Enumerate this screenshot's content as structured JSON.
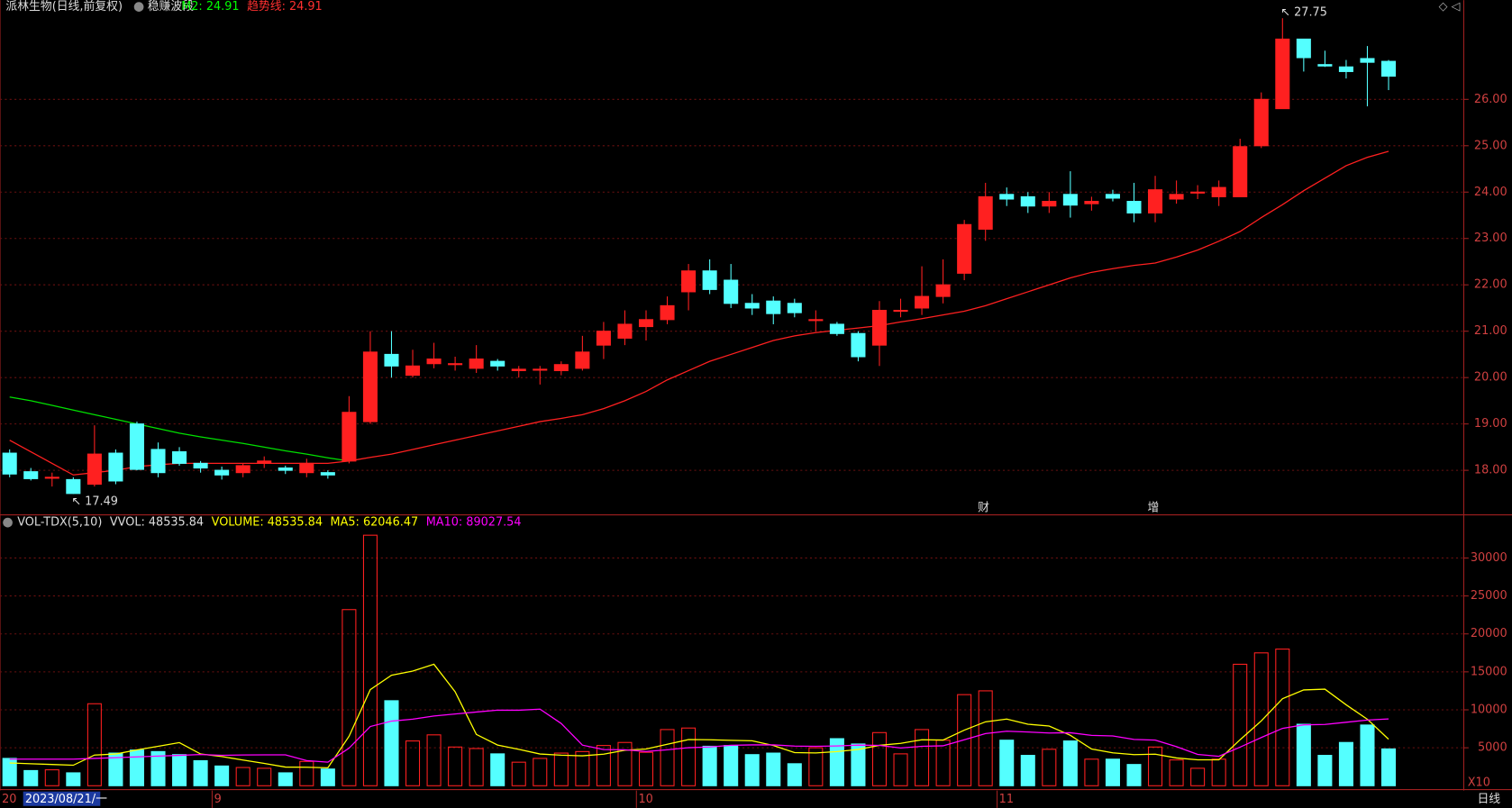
{
  "chart_data": [
    {
      "type": "candlestick",
      "title": "派林生物(日线,前复权)",
      "indicator": "稳赚波段",
      "legend": [
        {
          "text": "M2: 24.91",
          "color": "#00ff00"
        },
        {
          "text": "趋势线: 24.91",
          "color": "#ff3030"
        }
      ],
      "up_color": "#ff2020",
      "down_color": "#54ffff",
      "open": [
        18.37,
        17.97,
        17.85,
        17.8,
        17.7,
        18.37,
        19.0,
        18.45,
        18.4,
        18.15,
        18.0,
        17.95,
        18.15,
        18.05,
        17.95,
        17.95,
        18.2,
        19.05,
        20.5,
        20.05,
        20.3,
        20.3,
        20.2,
        20.35,
        20.15,
        20.18,
        20.15,
        20.2,
        20.7,
        20.85,
        21.1,
        21.25,
        21.85,
        22.3,
        22.1,
        21.6,
        21.65,
        21.6,
        21.25,
        21.15,
        20.95,
        20.7,
        21.45,
        21.5,
        21.75,
        22.25,
        23.2,
        23.95,
        23.9,
        23.7,
        23.95,
        23.75,
        23.95,
        23.8,
        23.55,
        23.85,
        24.0,
        23.9,
        23.9,
        25.0,
        25.8,
        27.3,
        26.75,
        26.7,
        26.88,
        26.82
      ],
      "high": [
        18.45,
        18.05,
        17.95,
        17.85,
        18.97,
        18.45,
        19.05,
        18.6,
        18.5,
        18.2,
        18.08,
        18.15,
        18.3,
        18.1,
        18.25,
        18.0,
        19.6,
        21.0,
        21.0,
        20.6,
        20.75,
        20.45,
        20.7,
        20.4,
        20.25,
        20.25,
        20.35,
        20.9,
        21.2,
        21.45,
        21.45,
        21.75,
        22.45,
        22.55,
        22.45,
        21.8,
        21.75,
        21.7,
        21.45,
        21.2,
        21.0,
        21.65,
        21.7,
        22.4,
        22.55,
        23.4,
        24.2,
        24.1,
        24.0,
        24.0,
        24.45,
        23.9,
        24.05,
        24.2,
        24.35,
        24.25,
        24.15,
        24.25,
        25.15,
        26.15,
        27.75,
        27.3,
        27.05,
        26.85,
        27.15,
        26.85
      ],
      "low": [
        17.85,
        17.78,
        17.65,
        17.49,
        17.65,
        17.7,
        18.0,
        17.85,
        18.1,
        17.95,
        17.8,
        17.85,
        18.05,
        17.92,
        17.85,
        17.82,
        18.15,
        19.0,
        20.0,
        20.0,
        20.2,
        20.15,
        20.1,
        20.15,
        20.0,
        19.85,
        20.05,
        20.15,
        20.4,
        20.7,
        20.8,
        21.15,
        21.45,
        21.8,
        21.5,
        21.35,
        21.15,
        21.3,
        21.0,
        20.9,
        20.35,
        20.25,
        21.3,
        21.35,
        21.6,
        22.1,
        22.95,
        23.7,
        23.55,
        23.55,
        23.45,
        23.6,
        23.8,
        23.35,
        23.35,
        23.75,
        23.85,
        23.7,
        23.9,
        24.95,
        25.8,
        26.6,
        26.7,
        26.45,
        25.85,
        26.2
      ],
      "close": [
        17.92,
        17.82,
        17.85,
        17.5,
        18.35,
        17.77,
        18.02,
        17.95,
        18.15,
        18.05,
        17.9,
        18.1,
        18.2,
        18.0,
        18.15,
        17.9,
        19.25,
        20.55,
        20.25,
        20.25,
        20.4,
        20.3,
        20.4,
        20.25,
        20.18,
        20.18,
        20.28,
        20.55,
        21.0,
        21.15,
        21.25,
        21.55,
        22.3,
        21.9,
        21.6,
        21.5,
        21.38,
        21.4,
        21.25,
        20.95,
        20.45,
        21.45,
        21.45,
        21.75,
        22.0,
        23.3,
        23.9,
        23.85,
        23.7,
        23.8,
        23.72,
        23.8,
        23.87,
        23.55,
        24.05,
        23.95,
        24.0,
        24.1,
        24.98,
        26.0,
        27.3,
        26.9,
        26.72,
        26.6,
        26.8,
        26.5
      ],
      "lines": [
        {
          "color": "#ff2020",
          "values": [
            18.65,
            18.4,
            18.15,
            17.9,
            17.95,
            18.0,
            18.08,
            18.12,
            18.15,
            18.15,
            18.15,
            18.15,
            18.15,
            18.15,
            18.15,
            18.15,
            18.2,
            18.28,
            18.35,
            18.45,
            18.55,
            18.65,
            18.75,
            18.85,
            18.95,
            19.05,
            19.12,
            19.2,
            19.33,
            19.5,
            19.7,
            19.95,
            20.15,
            20.35,
            20.5,
            20.65,
            20.8,
            20.9,
            20.97,
            21.02,
            21.07,
            21.12,
            21.2,
            21.27,
            21.35,
            21.43,
            21.55,
            21.7,
            21.85,
            22.0,
            22.15,
            22.27,
            22.35,
            22.42,
            22.47,
            22.6,
            22.75,
            22.94,
            23.15,
            23.45,
            23.73,
            24.03,
            24.3,
            24.57,
            24.75,
            24.88
          ]
        },
        {
          "color": "#00e000",
          "values": [
            19.58,
            19.5,
            19.4,
            19.3,
            19.2,
            19.1,
            19.0,
            18.9,
            18.8,
            18.72,
            18.65,
            18.58,
            18.5,
            18.42,
            18.35,
            18.27,
            18.2,
            null,
            null,
            null,
            null,
            null,
            null,
            null,
            null,
            null,
            null,
            null,
            null,
            null,
            null,
            null,
            null,
            null,
            null,
            null,
            null,
            null,
            null,
            null,
            null,
            null,
            null,
            null,
            null,
            null,
            null,
            null,
            null,
            null,
            null,
            null,
            null,
            null,
            null,
            null,
            null,
            null,
            null,
            null,
            null,
            null,
            null,
            null,
            null,
            null
          ]
        }
      ],
      "annotations": [
        {
          "text": "27.75",
          "index": 60
        },
        {
          "text": "17.49",
          "index": 3
        }
      ],
      "events": [
        {
          "text": "财",
          "index": 46
        },
        {
          "text": "增",
          "index": 54
        }
      ],
      "ylim": [
        17.06,
        27.85
      ],
      "yticks": [
        {
          "value": 18,
          "label": "18.00"
        },
        {
          "value": 19,
          "label": "19.00"
        },
        {
          "value": 20,
          "label": "20.00"
        },
        {
          "value": 21,
          "label": "21.00"
        },
        {
          "value": 22,
          "label": "22.00"
        },
        {
          "value": 23,
          "label": "23.00"
        },
        {
          "value": 24,
          "label": "24.00"
        },
        {
          "value": 25,
          "label": "25.00"
        },
        {
          "value": 26,
          "label": "26.00"
        }
      ]
    },
    {
      "type": "bar",
      "legend": [
        {
          "text": "VOL-TDX(5,10)",
          "color": "#dddddd"
        },
        {
          "text": "VVOL: 48535.84",
          "color": "#dddddd"
        },
        {
          "text": "VOLUME: 48535.84",
          "color": "#ffff00"
        },
        {
          "text": "MA5: 62046.47",
          "color": "#ffff00"
        },
        {
          "text": "MA10: 89027.54",
          "color": "#ff00ff"
        }
      ],
      "values": [
        3600,
        2000,
        2100,
        1700,
        10800,
        4300,
        4700,
        4500,
        4100,
        3300,
        2600,
        2400,
        2300,
        1700,
        3200,
        2200,
        23200,
        33000,
        11200,
        5900,
        6700,
        5100,
        4900,
        4200,
        3100,
        3600,
        4300,
        4500,
        5300,
        5700,
        4400,
        7400,
        7600,
        5200,
        5300,
        4100,
        4300,
        2900,
        5000,
        6200,
        5500,
        7000,
        4200,
        7400,
        6000,
        12000,
        12500,
        6000,
        4000,
        4800,
        5900,
        3500,
        3500,
        2800,
        5100,
        3400,
        2300,
        3500,
        16000,
        17500,
        18000,
        8100,
        4000,
        5700,
        8000,
        4850
      ],
      "lines": [
        {
          "color": "#ffff00",
          "values": [
            3000,
            2900,
            2800,
            2700,
            4040,
            4180,
            4720,
            5200,
            5680,
            4180,
            3840,
            3380,
            2940,
            2460,
            2440,
            2360,
            6520,
            12660,
            14560,
            15100,
            16000,
            12380,
            6760,
            5360,
            4800,
            4180,
            4020,
            3940,
            4160,
            4680,
            4840,
            5460,
            6080,
            6060,
            5980,
            5920,
            5300,
            4360,
            4320,
            4500,
            4780,
            5320,
            5580,
            6060,
            6020,
            7320,
            8420,
            8780,
            8100,
            7860,
            6640,
            4840,
            4340,
            4100,
            4160,
            3660,
            3420,
            3420,
            6060,
            8540,
            11460,
            12620,
            12720,
            10660,
            8760,
            6130
          ]
        },
        {
          "color": "#ff00ff",
          "values": [
            3500,
            3500,
            3500,
            3500,
            3600,
            3700,
            3800,
            3900,
            4000,
            4110,
            4010,
            4050,
            4070,
            4070,
            3310,
            3100,
            4950,
            7800,
            8510,
            8770,
            9180,
            9450,
            9710,
            9960,
            9950,
            10090,
            8200,
            5350,
            4760,
            4740,
            4510,
            4740,
            5010,
            5110,
            5330,
            5380,
            5380,
            5220,
            5190,
            5240,
            5350,
            5310,
            4970,
            5190,
            5260,
            6050,
            6870,
            7180,
            7080,
            6940,
            6980,
            6630,
            6560,
            6100,
            6010,
            5150,
            4130,
            3880,
            5080,
            6350,
            7560,
            8020,
            8070,
            8360,
            8650,
            8800
          ]
        }
      ],
      "ylim": [
        0,
        35300
      ],
      "yticks": [
        5000,
        10000,
        15000,
        20000,
        25000,
        30000
      ],
      "scale_note": "X10",
      "date_labels": [
        {
          "text": "2023/08/21/一",
          "index": 1
        },
        {
          "text": "9",
          "index": 10
        },
        {
          "text": "10",
          "index": 30
        },
        {
          "text": "11",
          "index": 47
        }
      ],
      "year_stub": "20",
      "period": "日线"
    }
  ]
}
